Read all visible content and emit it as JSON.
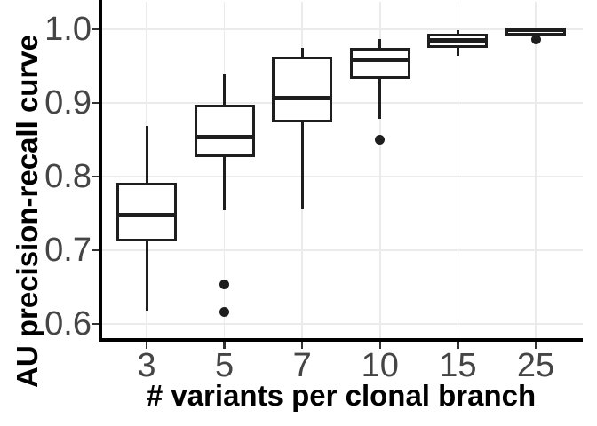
{
  "chart_data": {
    "type": "boxplot",
    "title": "",
    "xlabel": "# variants per clonal branch",
    "ylabel": "AU precision-recall curve",
    "categories": [
      "3",
      "5",
      "7",
      "10",
      "15",
      "25"
    ],
    "y_axis": {
      "ticks": [
        1.0,
        0.9,
        0.8,
        0.7,
        0.6
      ],
      "tick_labels": [
        "1.0",
        "0.9",
        "0.8",
        "0.7",
        "0.6"
      ],
      "range": [
        0.581,
        1.037
      ]
    },
    "grid": {
      "horizontal": "major-only",
      "vertical": "one-per-category",
      "minor": "off"
    },
    "legend": "none",
    "series": [
      {
        "category": "3",
        "whisker_low": 0.618,
        "q1": 0.712,
        "median": 0.748,
        "q3": 0.792,
        "whisker_high": 0.868,
        "outliers": []
      },
      {
        "category": "5",
        "whisker_low": 0.754,
        "q1": 0.827,
        "median": 0.854,
        "q3": 0.898,
        "whisker_high": 0.94,
        "outliers": [
          0.654,
          0.617
        ]
      },
      {
        "category": "7",
        "whisker_low": 0.755,
        "q1": 0.873,
        "median": 0.906,
        "q3": 0.962,
        "whisker_high": 0.974,
        "outliers": []
      },
      {
        "category": "10",
        "whisker_low": 0.878,
        "q1": 0.932,
        "median": 0.958,
        "q3": 0.975,
        "whisker_high": 0.987,
        "outliers": [
          0.85
        ]
      },
      {
        "category": "15",
        "whisker_low": 0.964,
        "q1": 0.975,
        "median": 0.985,
        "q3": 0.994,
        "whisker_high": 0.999,
        "outliers": []
      },
      {
        "category": "25",
        "whisker_low": 0.996,
        "q1": 0.997,
        "median": 0.999,
        "q3": 1.0,
        "whisker_high": 1.0,
        "outliers": [
          0.986
        ]
      }
    ],
    "colors": {
      "box_stroke": "#1e1e1e",
      "box_fill": "#ffffff",
      "median": "#1e1e1e",
      "outlier": "#1e1e1e",
      "grid": "#ebebeb",
      "axis_line": "#000000",
      "tick_mark": "#333333",
      "tick_label": "#454545",
      "axis_title": "#000000"
    }
  }
}
